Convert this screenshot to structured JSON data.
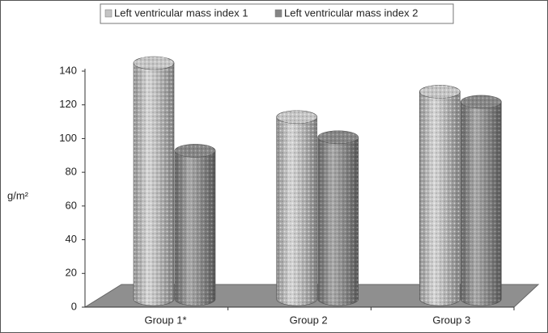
{
  "chart_data": {
    "type": "bar",
    "categories": [
      "Group 1*",
      "Group 2",
      "Group 3"
    ],
    "series": [
      {
        "name": "Left ventricular mass index 1",
        "color": "#c4c4c4",
        "values": [
          140,
          108,
          123
        ]
      },
      {
        "name": "Left ventricular mass index 2",
        "color": "#858585",
        "values": [
          88,
          96,
          117
        ]
      }
    ],
    "ylabel": "g/m²",
    "ylim": [
      0,
      140
    ],
    "yticks": [
      0,
      20,
      40,
      60,
      80,
      100,
      120,
      140
    ],
    "legend": "top"
  }
}
